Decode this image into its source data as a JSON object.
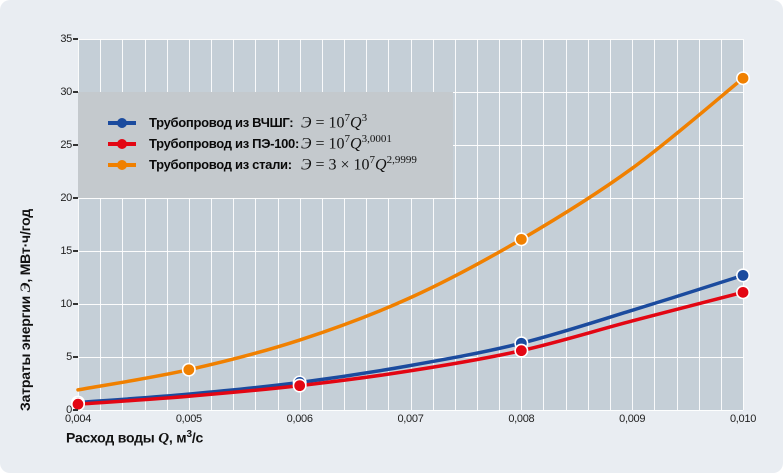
{
  "colors": {
    "background": "#e9edf2",
    "plot_bg": "#c5cfd7",
    "legend_bg": "#c4c9cd",
    "grid": "#ffffff",
    "blue": "#1b4b9e",
    "red": "#e30613",
    "orange": "#f08000",
    "marker_ring": "#ffffff",
    "text": "#111111"
  },
  "axes": {
    "y_label": {
      "pre": "Затраты энергии ",
      "sym": "Э",
      "post": ", МВт·ч/год"
    },
    "x_label": {
      "pre": "Расход воды ",
      "sym": "Q",
      "post1": ", м",
      "sup": "3",
      "post2": "/с"
    },
    "y_ticks": [
      "0",
      "5",
      "10",
      "15",
      "20",
      "25",
      "30",
      "35"
    ],
    "x_ticks": [
      "0,004",
      "0,005",
      "0,006",
      "0,007",
      "0,008",
      "0,009",
      "0,010"
    ]
  },
  "legend": {
    "items": [
      {
        "name": "vchshg",
        "label": "Трубопровод из ВЧШГ:",
        "sym": "Э",
        "eq": " = ",
        "coef": "10",
        "exp": "7",
        "base": "Q",
        "bexp": "3",
        "color": "#1b4b9e"
      },
      {
        "name": "pe-100",
        "label": "Трубопровод из ПЭ-100:",
        "sym": "Э",
        "eq": " = ",
        "coef": "10",
        "exp": "7",
        "base": "Q",
        "bexp": "3,0001",
        "color": "#e30613"
      },
      {
        "name": "steel",
        "label": "Трубопровод из стали:",
        "sym": "Э",
        "eq": " = ",
        "coef": "3 × 10",
        "exp": "7",
        "base": "Q",
        "bexp": "2,9999",
        "color": "#f08000"
      }
    ]
  },
  "chart_data": {
    "type": "line",
    "title": "",
    "xlabel": "Расход воды Q, м3/с",
    "ylabel": "Затраты энергии Э, МВт·ч/год",
    "xlim": [
      0.004,
      0.01
    ],
    "ylim": [
      0,
      35
    ],
    "grid": "on",
    "legend_position": "upper-left",
    "x": [
      0.004,
      0.005,
      0.006,
      0.007,
      0.008,
      0.009,
      0.01
    ],
    "x_minor_step": 0.0002,
    "y_tick_step": 5,
    "series": [
      {
        "name": "Трубопровод из ВЧШГ",
        "formula": "Э = 10^7 · Q^3",
        "color": "#1b4b9e",
        "values": [
          0.7,
          1.5,
          2.6,
          4.2,
          6.3,
          9.4,
          12.7
        ],
        "marker_x": [
          0.004,
          0.006,
          0.008,
          0.01
        ],
        "marker_y": [
          0.7,
          2.6,
          6.3,
          12.7
        ]
      },
      {
        "name": "Трубопровод из ПЭ-100",
        "formula": "Э = 10^7 · Q^3,0001",
        "color": "#e30613",
        "values": [
          0.55,
          1.3,
          2.3,
          3.7,
          5.6,
          8.4,
          11.1
        ],
        "marker_x": [
          0.004,
          0.006,
          0.008,
          0.01
        ],
        "marker_y": [
          0.55,
          2.3,
          5.6,
          11.1
        ]
      },
      {
        "name": "Трубопровод из стали",
        "formula": "Э = 3×10^7 · Q^2,9999",
        "color": "#f08000",
        "values": [
          1.9,
          3.8,
          6.6,
          10.6,
          16.1,
          22.8,
          31.3
        ],
        "marker_x": [
          0.005,
          0.008,
          0.01
        ],
        "marker_y": [
          3.8,
          16.1,
          31.3
        ]
      }
    ]
  }
}
